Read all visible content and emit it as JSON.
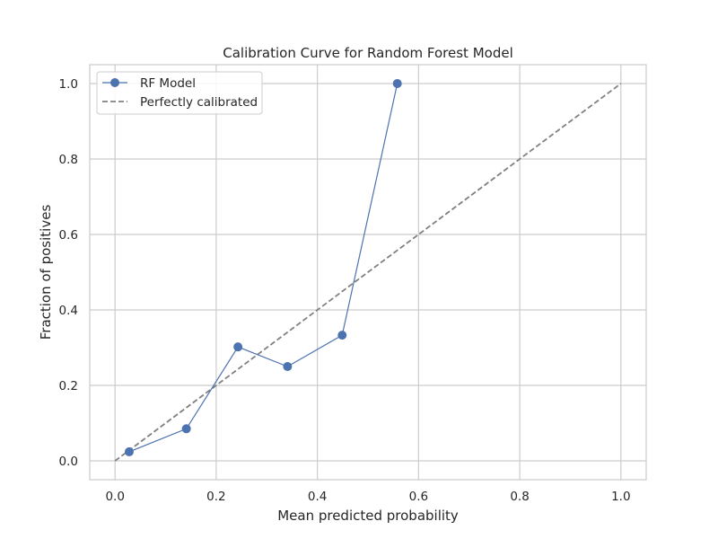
{
  "chart_data": {
    "type": "line",
    "title": "Calibration Curve for Random Forest Model",
    "xlabel": "Mean predicted probability",
    "ylabel": "Fraction of positives",
    "xlim": [
      -0.05,
      1.05
    ],
    "ylim": [
      -0.05,
      1.05
    ],
    "xticks": [
      0.0,
      0.2,
      0.4,
      0.6,
      0.8,
      1.0
    ],
    "yticks": [
      0.0,
      0.2,
      0.4,
      0.6,
      0.8,
      1.0
    ],
    "xtick_labels": [
      "0.0",
      "0.2",
      "0.4",
      "0.6",
      "0.8",
      "1.0"
    ],
    "ytick_labels": [
      "0.0",
      "0.2",
      "0.4",
      "0.6",
      "0.8",
      "1.0"
    ],
    "grid": true,
    "legend_position": "top-left",
    "series": [
      {
        "name": "RF Model",
        "style": "solid line with circle markers",
        "color": "#4c72b0",
        "x": [
          0.028,
          0.141,
          0.243,
          0.341,
          0.449,
          0.558
        ],
        "y": [
          0.024,
          0.085,
          0.302,
          0.25,
          0.333,
          1.0
        ]
      },
      {
        "name": "Perfectly calibrated",
        "style": "dashed line",
        "color": "#808080",
        "x": [
          0.0,
          1.0
        ],
        "y": [
          0.0,
          1.0
        ]
      }
    ]
  },
  "colors": {
    "axes_edge": "#cccccc",
    "grid": "#cccccc",
    "text": "#262626",
    "background": "#ffffff"
  }
}
